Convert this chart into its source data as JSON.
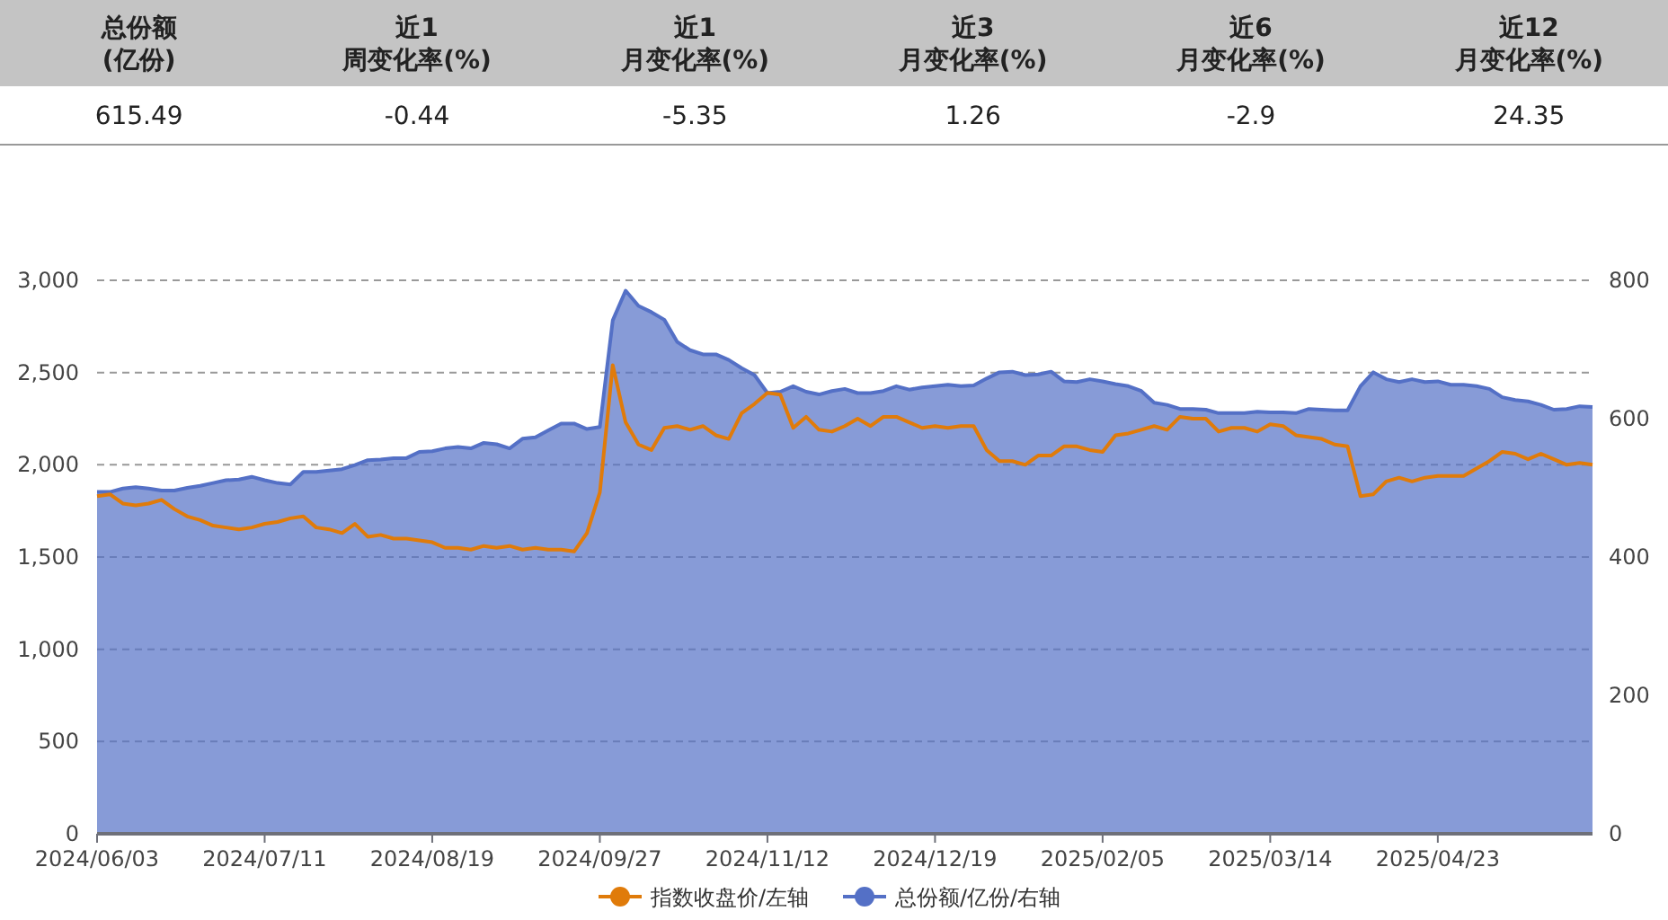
{
  "chart_data": [
    {
      "type": "other",
      "categories": [
        "总份额(亿份)",
        "近1周变化率(%)",
        "近1月变化率(%)",
        "近3月变化率(%)",
        "近6月变化率(%)",
        "近12月变化率(%)"
      ],
      "values": [
        615.49,
        -0.44,
        -5.35,
        1.26,
        -2.9,
        24.35
      ],
      "data_labels": true
    },
    {
      "type": "area",
      "categories": [
        "2024/06/03",
        null,
        null,
        null,
        null,
        null,
        null,
        null,
        null,
        null,
        null,
        null,
        null,
        "2024/07/11",
        null,
        null,
        null,
        null,
        null,
        null,
        null,
        null,
        null,
        null,
        null,
        null,
        "2024/08/19",
        null,
        null,
        null,
        null,
        null,
        null,
        null,
        null,
        null,
        null,
        null,
        null,
        "2024/09/27",
        null,
        null,
        null,
        null,
        null,
        null,
        null,
        null,
        null,
        null,
        null,
        null,
        "2024/11/12",
        null,
        null,
        null,
        null,
        null,
        null,
        null,
        null,
        null,
        null,
        null,
        null,
        "2024/12/19",
        null,
        null,
        null,
        null,
        null,
        null,
        null,
        null,
        null,
        null,
        null,
        null,
        "2025/02/05",
        null,
        null,
        null,
        null,
        null,
        null,
        null,
        null,
        null,
        null,
        null,
        null,
        "2025/03/14",
        null,
        null,
        null,
        null,
        null,
        null,
        null,
        null,
        null,
        null,
        null,
        null,
        "2025/04/23",
        null,
        null,
        null,
        null,
        null,
        null,
        null,
        null,
        null,
        null,
        null,
        null
      ],
      "series": [
        {
          "name": "总份额/亿份/右轴",
          "type": "area",
          "axis": "y2",
          "color": "#5470c6",
          "values": [
            494,
            494,
            499,
            501,
            499,
            496,
            496,
            500,
            503,
            507,
            511,
            512,
            516,
            511,
            507,
            505,
            523,
            523,
            525,
            527,
            533,
            540,
            541,
            543,
            543,
            552,
            553,
            557,
            559,
            557,
            565,
            563,
            557,
            571,
            573,
            583,
            593,
            593,
            585,
            588,
            742,
            785,
            763,
            754,
            743,
            711,
            699,
            693,
            693,
            685,
            673,
            663,
            637,
            639,
            647,
            639,
            635,
            640,
            643,
            637,
            637,
            640,
            647,
            642,
            645,
            647,
            649,
            647,
            648,
            658,
            667,
            668,
            663,
            664,
            668,
            654,
            653,
            657,
            654,
            650,
            647,
            640,
            623,
            620,
            614,
            614,
            613,
            608,
            608,
            608,
            610,
            609,
            609,
            608,
            614,
            613,
            612,
            612,
            647,
            667,
            657,
            653,
            657,
            653,
            654,
            649,
            649,
            647,
            643,
            631,
            627,
            625,
            620,
            613,
            614,
            618,
            617
          ]
        },
        {
          "name": "指数收盘价/左轴",
          "type": "line",
          "color": "#e07b0a",
          "values": [
            1830,
            1840,
            1790,
            1780,
            1790,
            1810,
            1760,
            1720,
            1700,
            1670,
            1660,
            1650,
            1660,
            1680,
            1690,
            1710,
            1720,
            1660,
            1650,
            1630,
            1680,
            1610,
            1620,
            1600,
            1600,
            1590,
            1580,
            1550,
            1550,
            1540,
            1560,
            1550,
            1560,
            1540,
            1550,
            1540,
            1540,
            1530,
            1630,
            1850,
            2540,
            2230,
            2110,
            2080,
            2200,
            2210,
            2190,
            2210,
            2160,
            2140,
            2280,
            2330,
            2390,
            2380,
            2200,
            2260,
            2190,
            2180,
            2210,
            2250,
            2210,
            2260,
            2260,
            2230,
            2200,
            2210,
            2200,
            2210,
            2210,
            2080,
            2020,
            2020,
            2000,
            2050,
            2050,
            2100,
            2100,
            2080,
            2070,
            2160,
            2170,
            2190,
            2210,
            2190,
            2260,
            2250,
            2250,
            2180,
            2200,
            2200,
            2180,
            2220,
            2210,
            2160,
            2150,
            2140,
            2110,
            2100,
            1830,
            1840,
            1910,
            1930,
            1910,
            1930,
            1940,
            1940,
            1940,
            1980,
            2020,
            2070,
            2060,
            2030,
            2060,
            2030,
            2000,
            2010,
            2000
          ]
        }
      ],
      "ylim": [
        0,
        3000
      ],
      "yticks": [
        {
          "value": 0,
          "label": "0"
        },
        {
          "value": 500,
          "label": "500"
        },
        {
          "value": 1000,
          "label": "1,000"
        },
        {
          "value": 1500,
          "label": "1,500"
        },
        {
          "value": 2000,
          "label": "2,000"
        },
        {
          "value": 2500,
          "label": "2,500"
        },
        {
          "value": 3000,
          "label": "3,000"
        }
      ],
      "y2lim": [
        0,
        800
      ],
      "y2ticks": [
        0,
        200,
        400,
        600,
        800
      ],
      "grid": "y",
      "legend": "bottom"
    }
  ]
}
